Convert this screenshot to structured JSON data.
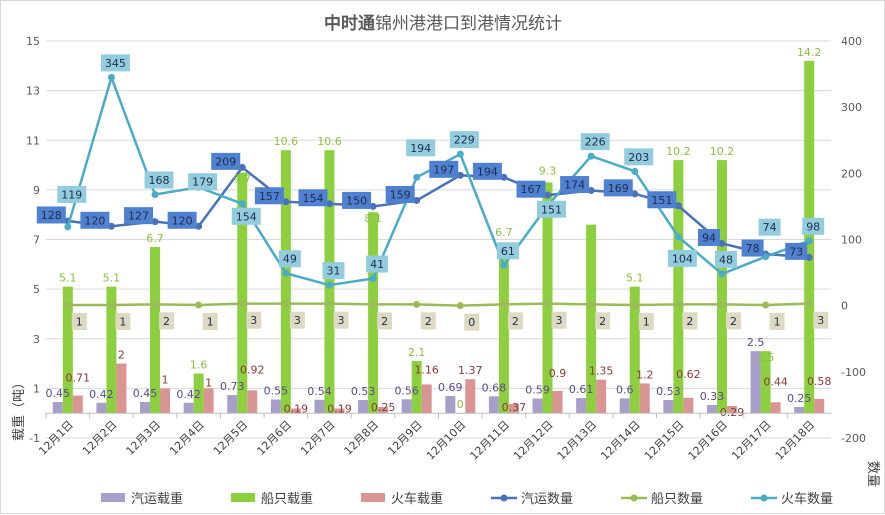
{
  "chart_data": {
    "type": "bar+line",
    "title_bold": "中时通",
    "title": "锦州港港口到港情况统计",
    "ylabel": "载重（吨）",
    "y2label": "数量",
    "ylim": [
      -1,
      15
    ],
    "yticks": [
      -1,
      1,
      3,
      5,
      7,
      9,
      11,
      13,
      15
    ],
    "y2lim": [
      -200,
      400
    ],
    "y2ticks": [
      -200,
      -100,
      0,
      100,
      200,
      300,
      400
    ],
    "grid": true,
    "legend_position": "bottom",
    "categories": [
      "12月1日",
      "12月2日",
      "12月3日",
      "12月4日",
      "12月5日",
      "12月6日",
      "12月7日",
      "12月8日",
      "12月9日",
      "12月10日",
      "12月11日",
      "12月12日",
      "12月13日",
      "12月14日",
      "12月15日",
      "12月16日",
      "12月17日",
      "12月18日"
    ],
    "bar_series": [
      {
        "name": "汽运载重",
        "color": "#a79fc9",
        "axis": "left",
        "values": [
          0.45,
          0.42,
          0.45,
          0.42,
          0.73,
          0.55,
          0.54,
          0.53,
          0.56,
          0.69,
          0.68,
          0.59,
          0.61,
          0.6,
          0.53,
          0.33,
          2.5,
          0.25
        ],
        "label_color": "#5b4b8a"
      },
      {
        "name": "船只载重",
        "color": "#8dcf3f",
        "axis": "left",
        "values": [
          5.1,
          5.1,
          6.7,
          1.6,
          9.7,
          10.6,
          10.6,
          8.1,
          2.1,
          0,
          6.7,
          9.3,
          7.6,
          5.1,
          10.2,
          10.2,
          2.5,
          14.2
        ],
        "labels_hidden": [
          12
        ],
        "label_color": "#8dbf3f"
      },
      {
        "name": "火车载重",
        "color": "#d99594",
        "axis": "left",
        "values": [
          0.71,
          2,
          1,
          1,
          0.92,
          0.19,
          0.19,
          0.25,
          1.16,
          1.37,
          0.37,
          0.9,
          1.35,
          1.2,
          0.62,
          0.29,
          0.44,
          0.58
        ],
        "label_color": "#8b3a3a"
      }
    ],
    "line_series": [
      {
        "name": "汽运数量",
        "color": "#4a72b8",
        "box": "#4f81d0",
        "axis": "right",
        "values": [
          128,
          120,
          127,
          120,
          209,
          157,
          154,
          150,
          159,
          197,
          194,
          167,
          174,
          169,
          151,
          94,
          78,
          73
        ]
      },
      {
        "name": "船只数量",
        "color": "#9bbb59",
        "box": "#ddd9c3",
        "axis": "right",
        "values": [
          1,
          1,
          2,
          1,
          3,
          3,
          3,
          2,
          2,
          0,
          2,
          3,
          2,
          1,
          2,
          2,
          1,
          3
        ]
      },
      {
        "name": "火车数量",
        "color": "#4bacc6",
        "box": "#93cddd",
        "axis": "right",
        "values": [
          119,
          345,
          168,
          179,
          154,
          49,
          31,
          41,
          194,
          229,
          61,
          151,
          226,
          203,
          104,
          48,
          74,
          98
        ]
      }
    ]
  }
}
